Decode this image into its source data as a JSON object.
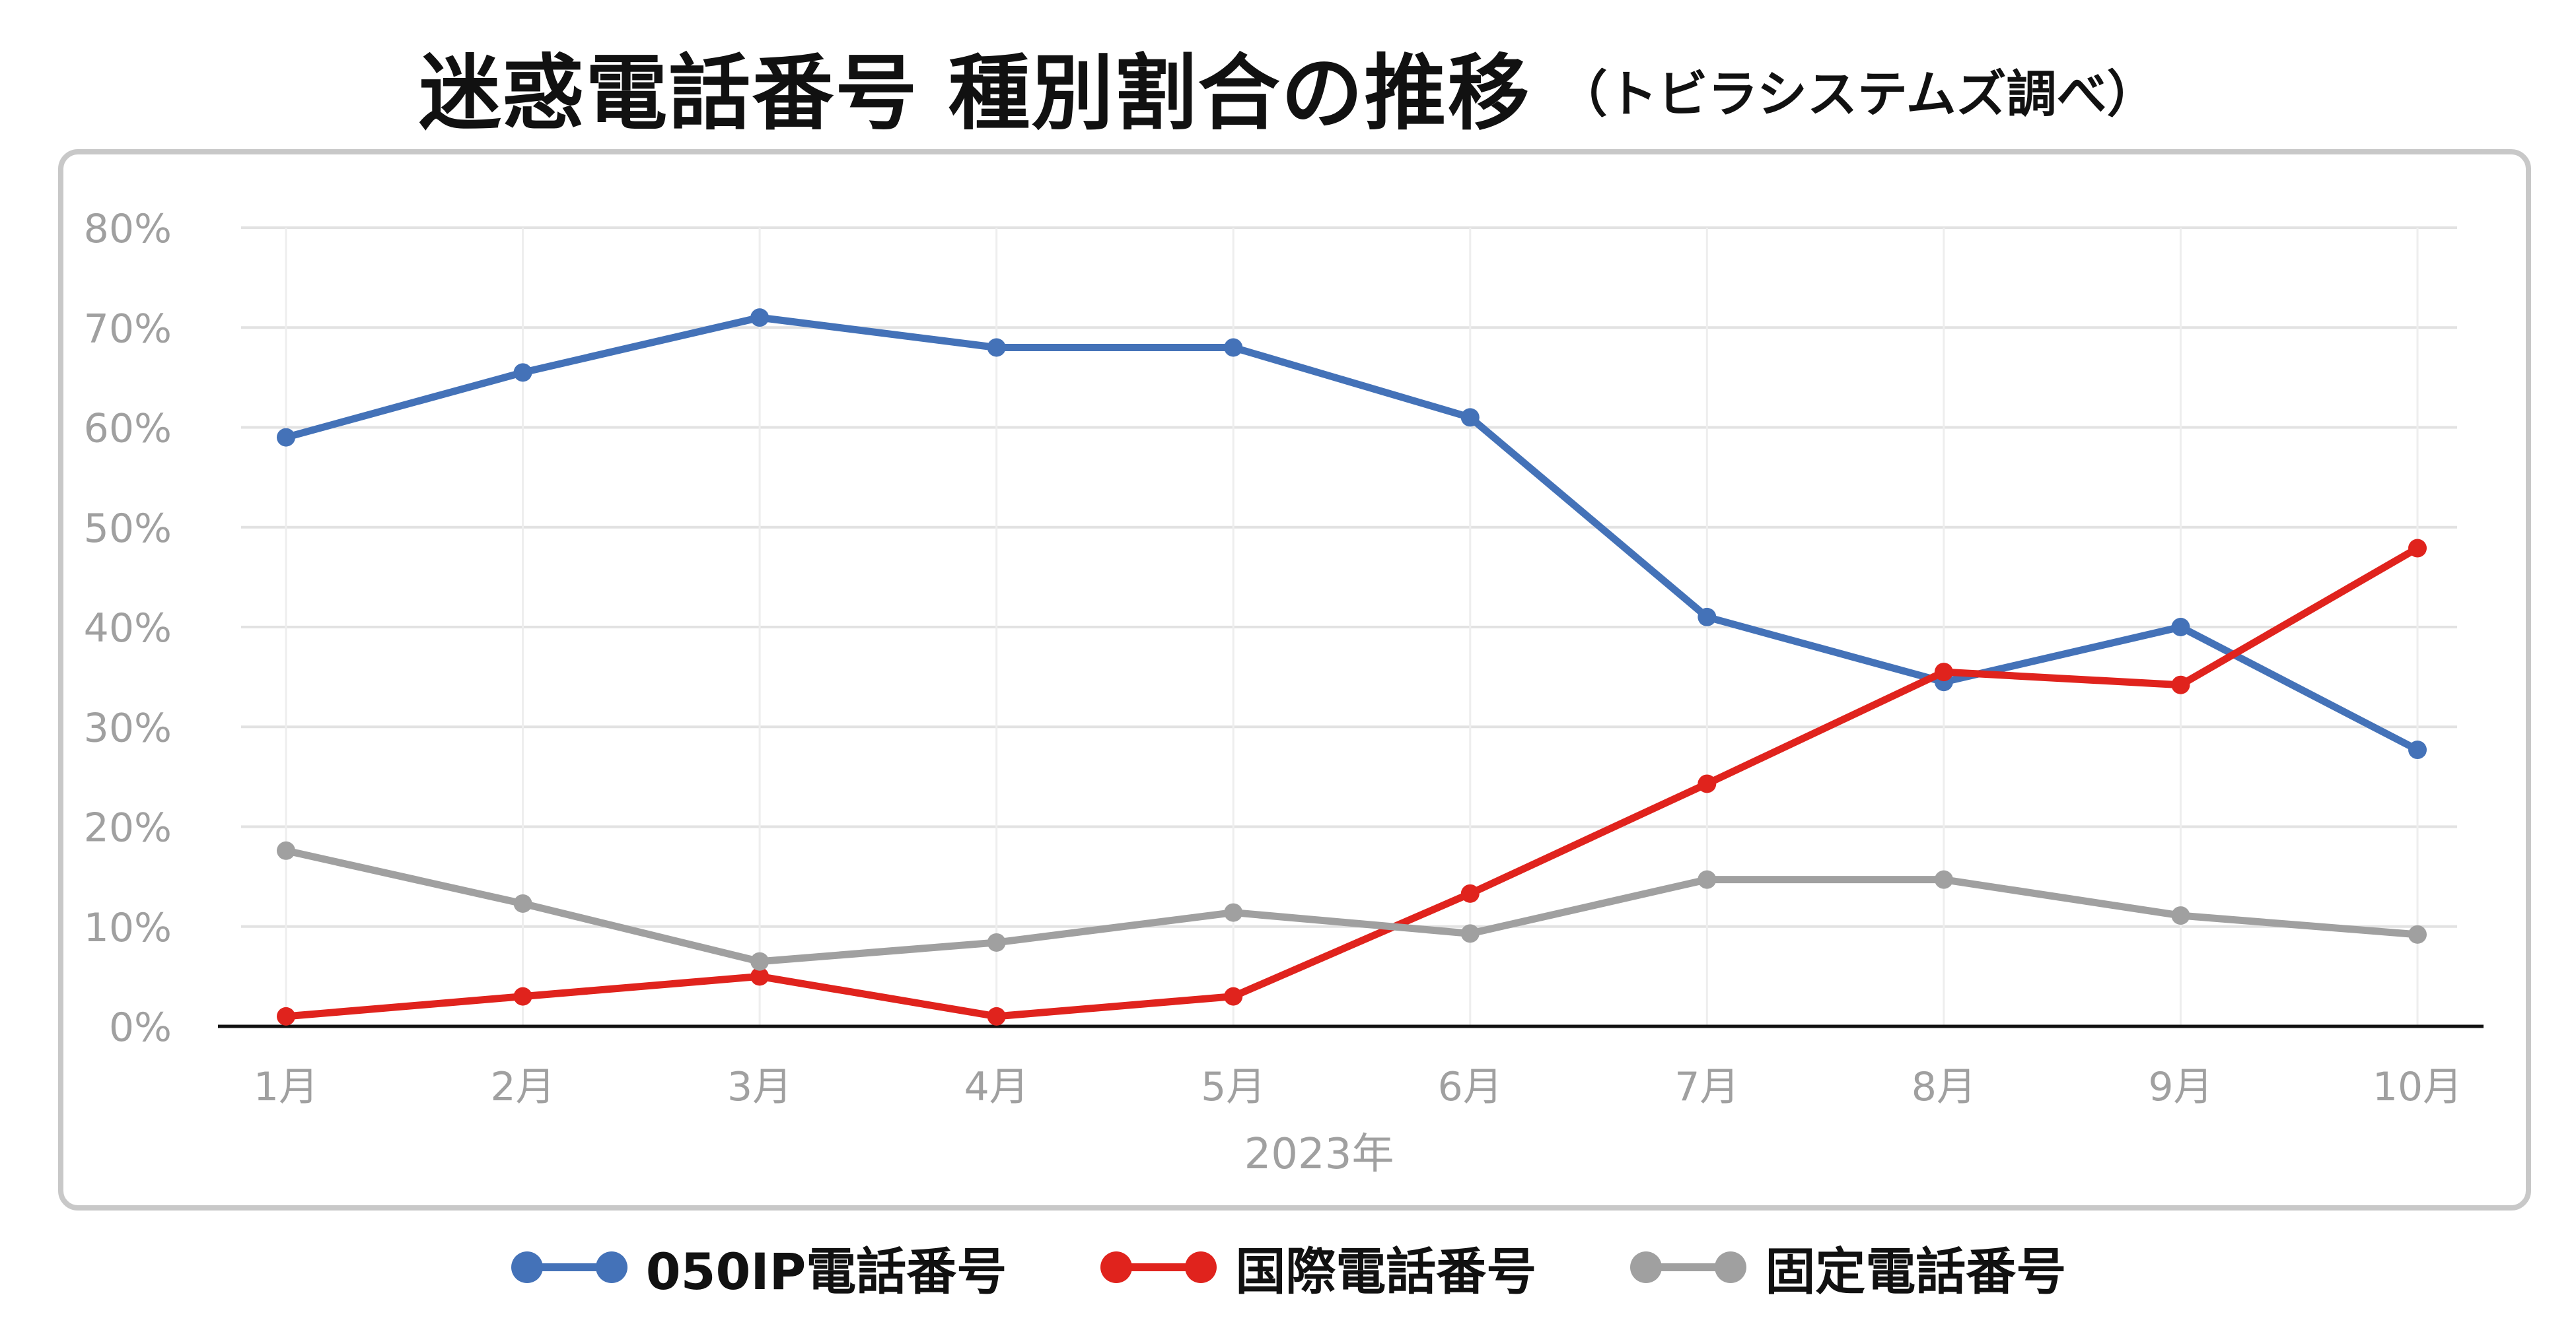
{
  "title": "迷惑電話番号 種別割合の推移",
  "subtitle": "（トビラシステムズ調べ）",
  "chart_data": {
    "type": "line",
    "categories": [
      "1月",
      "2月",
      "3月",
      "4月",
      "5月",
      "6月",
      "7月",
      "8月",
      "9月",
      "10月"
    ],
    "xlabel": "2023年",
    "ylabel": "",
    "ylim": [
      0,
      80
    ],
    "yticks": [
      "0%",
      "10%",
      "20%",
      "30%",
      "40%",
      "50%",
      "60%",
      "70%",
      "80%"
    ],
    "grid": true,
    "legend_position": "bottom",
    "series": [
      {
        "name": "050IP電話番号",
        "color": "#4472b8",
        "values": [
          59,
          65.5,
          71,
          68,
          68,
          61,
          41,
          34.5,
          40,
          27.7
        ]
      },
      {
        "name": "国際電話番号",
        "color": "#e0231d",
        "values": [
          1,
          3,
          5,
          1,
          3,
          13.3,
          24.3,
          35.5,
          34.2,
          47.9
        ]
      },
      {
        "name": "固定電話番号",
        "color": "#a0a0a0",
        "values": [
          17.6,
          12.3,
          6.5,
          8.4,
          11.4,
          9.3,
          14.7,
          14.7,
          11.1,
          9.2
        ]
      }
    ]
  }
}
